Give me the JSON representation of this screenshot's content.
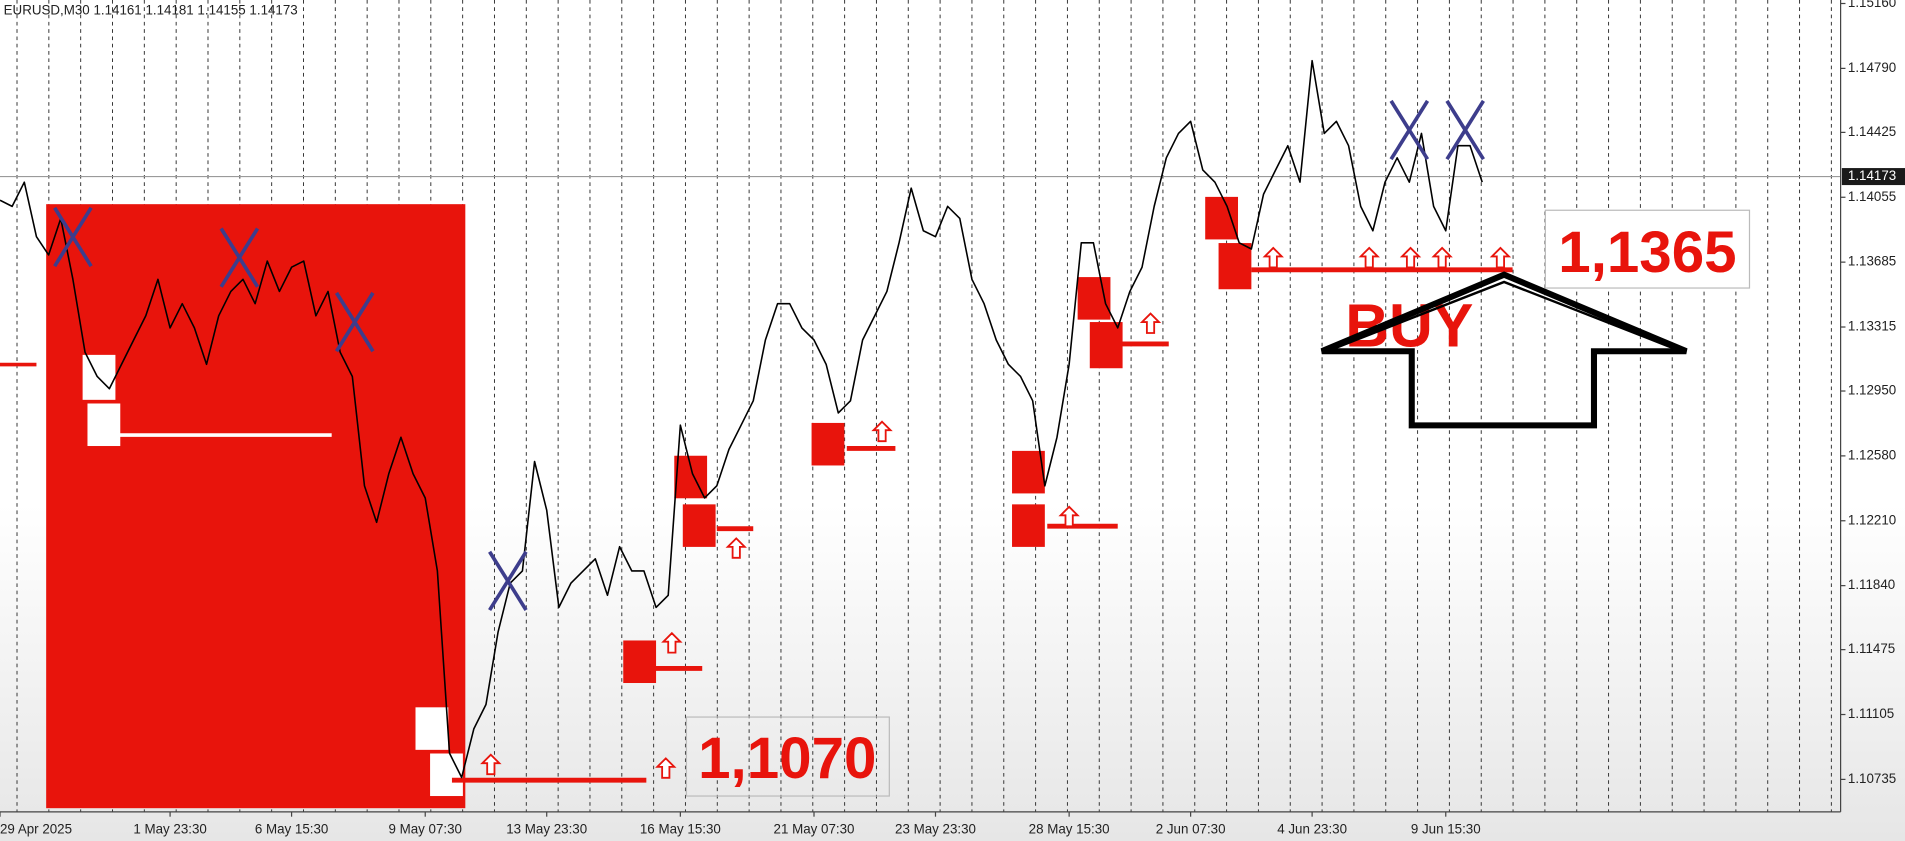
{
  "chart_data": {
    "type": "line",
    "header": "EURUSD,M30 1.14161 1.14181 1.14155 1.14173",
    "current_price": 1.14173,
    "color": "#000000",
    "categories": [
      "29 Apr 2025",
      null,
      null,
      null,
      null,
      null,
      null,
      null,
      null,
      null,
      null,
      null,
      null,
      null,
      "1 May 23:30",
      null,
      null,
      null,
      null,
      null,
      null,
      null,
      null,
      null,
      "6 May 15:30",
      null,
      null,
      null,
      null,
      null,
      null,
      null,
      null,
      null,
      null,
      "9 May 07:30",
      null,
      null,
      null,
      null,
      null,
      null,
      null,
      null,
      null,
      "13 May 23:30",
      null,
      null,
      null,
      null,
      null,
      null,
      null,
      null,
      null,
      null,
      "16 May 15:30",
      null,
      null,
      null,
      null,
      null,
      null,
      null,
      null,
      null,
      null,
      "21 May 07:30",
      null,
      null,
      null,
      null,
      null,
      null,
      null,
      null,
      null,
      "23 May 23:30",
      null,
      null,
      null,
      null,
      null,
      null,
      null,
      null,
      null,
      null,
      "28 May 15:30",
      null,
      null,
      null,
      null,
      null,
      null,
      null,
      null,
      null,
      "2 Jun 07:30",
      null,
      null,
      null,
      null,
      null,
      null,
      null,
      null,
      null,
      "4 Jun 23:30",
      null,
      null,
      null,
      null,
      null,
      null,
      null,
      null,
      null,
      null,
      "9 Jun 15:30",
      null,
      null,
      null
    ],
    "values": [
      1.14038,
      1.14003,
      1.14141,
      1.1383,
      1.13726,
      1.13934,
      1.13587,
      1.13171,
      1.13033,
      1.12963,
      1.13102,
      1.13241,
      1.13379,
      1.13587,
      1.1331,
      1.13448,
      1.1331,
      1.13102,
      1.13379,
      1.13518,
      1.13587,
      1.13448,
      1.13691,
      1.13518,
      1.13656,
      1.13691,
      1.13379,
      1.13518,
      1.13171,
      1.13033,
      1.12409,
      1.12201,
      1.12478,
      1.12686,
      1.12478,
      1.1234,
      1.11924,
      1.10884,
      1.10746,
      1.11023,
      1.11162,
      1.11577,
      1.11855,
      1.11924,
      1.12548,
      1.1227,
      1.11716,
      1.11855,
      1.11924,
      1.11993,
      1.11785,
      1.12062,
      1.11924,
      1.11924,
      1.11716,
      1.11785,
      1.12755,
      1.12478,
      1.1234,
      1.12409,
      1.12617,
      1.12755,
      1.12894,
      1.13241,
      1.13448,
      1.13448,
      1.1331,
      1.13241,
      1.13102,
      1.12825,
      1.12894,
      1.13241,
      1.13379,
      1.13518,
      1.13795,
      1.14107,
      1.13864,
      1.1383,
      1.14003,
      1.13934,
      1.13587,
      1.13448,
      1.13241,
      1.13102,
      1.13033,
      1.12894,
      1.12409,
      1.12686,
      1.13102,
      1.13795,
      1.13795,
      1.13448,
      1.1331,
      1.13518,
      1.13656,
      1.14003,
      1.1428,
      1.14419,
      1.14488,
      1.14211,
      1.14141,
      1.14003,
      1.13795,
      1.1376,
      1.14072,
      1.14211,
      1.14349,
      1.14141,
      1.14834,
      1.14419,
      1.14488,
      1.14349,
      1.14003,
      1.13864,
      1.14141,
      1.1428,
      1.14141,
      1.14419,
      1.14003,
      1.13864,
      1.14349,
      1.14349,
      1.14141
    ],
    "ylim": [
      1.1055,
      1.1518
    ],
    "yticks": [
      {
        "value": 1.1516,
        "label": "1.15160"
      },
      {
        "value": 1.1479,
        "label": "1.14790"
      },
      1.14425,
      1.14055,
      1.13685,
      1.13315,
      {
        "value": 1.1295,
        "label": "1.12950"
      },
      {
        "value": 1.1258,
        "label": "1.12580"
      },
      {
        "value": 1.1221,
        "label": "1.12210"
      },
      {
        "value": 1.1184,
        "label": "1.11840"
      },
      1.11475,
      1.11105,
      1.10735
    ],
    "annotations": [
      "1,1070",
      "1,1365",
      "BUY"
    ]
  }
}
